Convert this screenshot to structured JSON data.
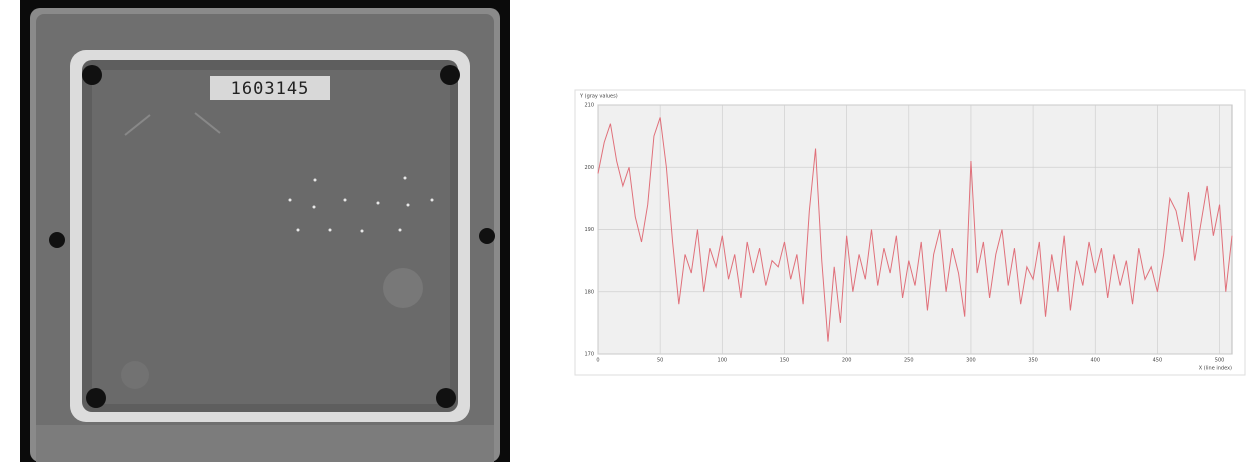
{
  "image": {
    "label": "1603145"
  },
  "chart_data": {
    "type": "line",
    "y_label": "Y (gray values)",
    "x_label": "X (line index)",
    "x": [
      0,
      5,
      10,
      15,
      20,
      25,
      30,
      35,
      40,
      45,
      50,
      55,
      60,
      65,
      70,
      75,
      80,
      85,
      90,
      95,
      100,
      105,
      110,
      115,
      120,
      125,
      130,
      135,
      140,
      145,
      150,
      155,
      160,
      165,
      170,
      175,
      180,
      185,
      190,
      195,
      200,
      205,
      210,
      215,
      220,
      225,
      230,
      235,
      240,
      245,
      250,
      255,
      260,
      265,
      270,
      275,
      280,
      285,
      290,
      295,
      300,
      305,
      310,
      315,
      320,
      325,
      330,
      335,
      340,
      345,
      350,
      355,
      360,
      365,
      370,
      375,
      380,
      385,
      390,
      395,
      400,
      405,
      410,
      415,
      420,
      425,
      430,
      435,
      440,
      445,
      450,
      455,
      460,
      465,
      470,
      475,
      480,
      485,
      490,
      495,
      500,
      505,
      510
    ],
    "series": [
      {
        "name": "Y (gray values)",
        "color": "#e0707a",
        "values": [
          199,
          204,
          207,
          201,
          197,
          200,
          192,
          188,
          194,
          205,
          208,
          200,
          188,
          178,
          186,
          183,
          190,
          180,
          187,
          184,
          189,
          182,
          186,
          179,
          188,
          183,
          187,
          181,
          185,
          184,
          188,
          182,
          186,
          178,
          193,
          203,
          185,
          172,
          184,
          175,
          189,
          180,
          186,
          182,
          190,
          181,
          187,
          183,
          189,
          179,
          185,
          181,
          188,
          177,
          186,
          190,
          180,
          187,
          183,
          176,
          201,
          183,
          188,
          179,
          186,
          190,
          181,
          187,
          178,
          184,
          182,
          188,
          176,
          186,
          180,
          189,
          177,
          185,
          181,
          188,
          183,
          187,
          179,
          186,
          181,
          185,
          178,
          187,
          182,
          184,
          180,
          186,
          195,
          193,
          188,
          196,
          185,
          191,
          197,
          189,
          194,
          180,
          189
        ]
      }
    ],
    "xlim": [
      0,
      510
    ],
    "xticks": [
      0,
      50,
      100,
      150,
      200,
      250,
      300,
      350,
      400,
      450,
      500
    ],
    "ylim": [
      170,
      210
    ],
    "yticks": [
      170,
      180,
      190,
      200,
      210
    ],
    "grid": true
  }
}
